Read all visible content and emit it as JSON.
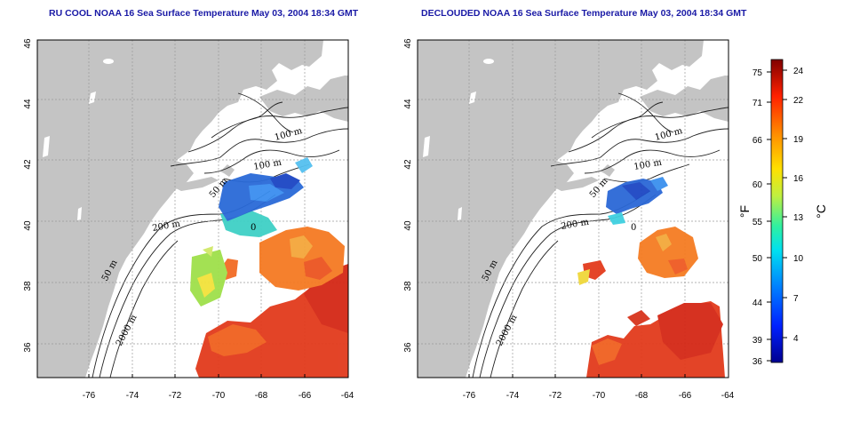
{
  "panels": [
    {
      "id": "left",
      "title": "RU COOL NOAA 16 Sea Surface Temperature May 03, 2004 18:34 GMT",
      "contour_labels": [
        "100 m",
        "100 m",
        "50 m",
        "200 m",
        "0",
        "50 m",
        "2000 m"
      ]
    },
    {
      "id": "right",
      "title": "DECLOUDED NOAA 16 Sea Surface Temperature May 03, 2004 18:34 GMT",
      "contour_labels": [
        "100 m",
        "100 m",
        "50 m",
        "200 m",
        "0",
        "50 m",
        "2000 m"
      ]
    }
  ],
  "axes": {
    "x_ticks": [
      "-76",
      "-74",
      "-72",
      "-70",
      "-68",
      "-66",
      "-64"
    ],
    "y_ticks": [
      "46",
      "44",
      "42",
      "40",
      "38",
      "36"
    ],
    "xlim": [
      -77.4,
      -63.0
    ],
    "ylim": [
      35.0,
      46.0
    ]
  },
  "colorbar": {
    "fahrenheit_ticks": [
      "75",
      "71",
      "66",
      "60",
      "55",
      "50",
      "44",
      "39",
      "36"
    ],
    "celsius_ticks": [
      "24",
      "22",
      "19",
      "16",
      "13",
      "10",
      "7",
      "4"
    ],
    "fahrenheit_unit": "°F",
    "celsius_unit": "°C",
    "range_c": [
      2,
      25
    ]
  },
  "colors": {
    "land": "#c4c4c4",
    "title": "#1a1aa6",
    "warm": "#d82a18",
    "orange": "#f28a1e",
    "cool": "#2a6bd8",
    "cyan": "#1fc7c7"
  }
}
